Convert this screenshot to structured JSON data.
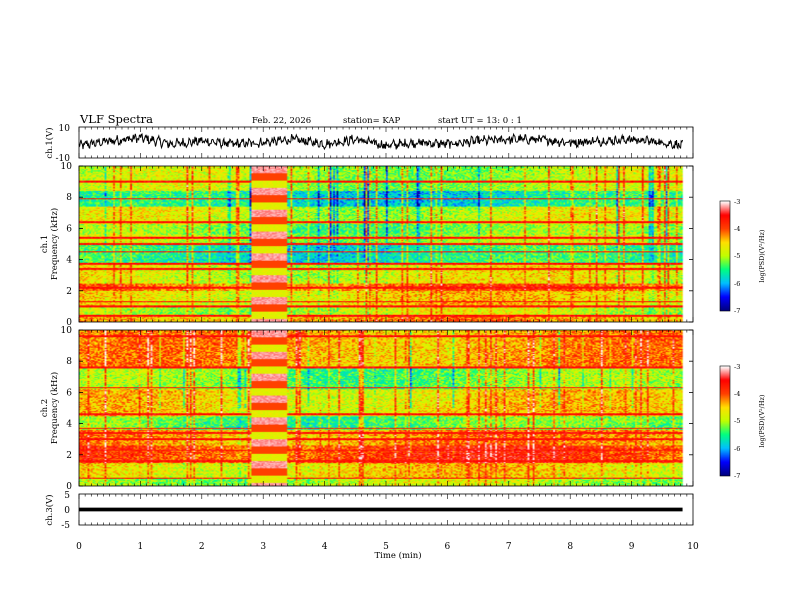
{
  "header": {
    "title": "VLF Spectra",
    "date": "Feb. 22, 2026",
    "station": "station= KAP",
    "start": "start  UT  =   13: 0   : 1"
  },
  "chart_data": [
    {
      "type": "line",
      "id": "ch1-waveform",
      "ylabel": "ch.1(V)",
      "ylim": [
        -10,
        10
      ],
      "ytick_labels": [
        "10",
        "-10"
      ],
      "xlim": [
        0,
        9.83
      ],
      "description_values_note": "noisy waveform, amplitude approx -6..6 V",
      "envelope_samples": [
        {
          "t": 0.0,
          "v": -2
        },
        {
          "t": 0.5,
          "v": 1
        },
        {
          "t": 1.0,
          "v": 3
        },
        {
          "t": 1.5,
          "v": -1
        },
        {
          "t": 2.0,
          "v": 1
        },
        {
          "t": 2.5,
          "v": -1
        },
        {
          "t": 3.0,
          "v": 0
        },
        {
          "t": 3.5,
          "v": 2
        },
        {
          "t": 4.0,
          "v": -1
        },
        {
          "t": 4.5,
          "v": 2
        },
        {
          "t": 5.0,
          "v": -2
        },
        {
          "t": 5.5,
          "v": 0
        },
        {
          "t": 6.0,
          "v": -1
        },
        {
          "t": 6.5,
          "v": 1
        },
        {
          "t": 7.0,
          "v": 2
        },
        {
          "t": 7.5,
          "v": 2
        },
        {
          "t": 8.0,
          "v": 0
        },
        {
          "t": 8.5,
          "v": 1
        },
        {
          "t": 9.0,
          "v": 2
        },
        {
          "t": 9.5,
          "v": 0
        },
        {
          "t": 9.83,
          "v": -2
        }
      ]
    },
    {
      "type": "heatmap",
      "id": "ch1-spectrogram",
      "ylabel_line1": "ch.1",
      "ylabel_line2": "Frequency (kHz)",
      "ylim": [
        0,
        10
      ],
      "ytick_labels": [
        "0",
        "2",
        "4",
        "6",
        "8",
        "10"
      ],
      "xlim": [
        0,
        9.83
      ],
      "colorbar": {
        "label": "log(PSD)(V²/Hz)",
        "range": [
          -7,
          -3
        ],
        "tick_labels": [
          "-3",
          "-4",
          "-5",
          "-6",
          "-7"
        ]
      },
      "bands_khz_level": [
        {
          "f": [
            0,
            0.4
          ],
          "level": -4.3
        },
        {
          "f": [
            0.4,
            1.0
          ],
          "level": -4.9
        },
        {
          "f": [
            1.0,
            2.0
          ],
          "level": -4.6
        },
        {
          "f": [
            2.0,
            2.5
          ],
          "level": -4.1
        },
        {
          "f": [
            2.5,
            3.8
          ],
          "level": -4.8
        },
        {
          "f": [
            3.8,
            5.0
          ],
          "level": -5.6
        },
        {
          "f": [
            5.0,
            5.6
          ],
          "level": -5.0
        },
        {
          "f": [
            5.6,
            6.3
          ],
          "level": -5.2
        },
        {
          "f": [
            6.3,
            7.4
          ],
          "level": -4.9
        },
        {
          "f": [
            7.4,
            8.4
          ],
          "level": -5.7
        },
        {
          "f": [
            8.4,
            10
          ],
          "level": -5.0
        }
      ],
      "transmitter_lines_khz": [
        0.4,
        1.0,
        1.3,
        2.2,
        3.4,
        3.75,
        4.5,
        5.0,
        5.4,
        6.4,
        7.9,
        9.0
      ],
      "burst_interval_min": [
        2.8,
        3.35
      ]
    },
    {
      "type": "heatmap",
      "id": "ch2-spectrogram",
      "ylabel_line1": "ch.2",
      "ylabel_line2": "Frequency (kHz)",
      "ylim": [
        0,
        10
      ],
      "ytick_labels": [
        "0",
        "2",
        "4",
        "6",
        "8",
        "10"
      ],
      "xlim": [
        0,
        9.83
      ],
      "colorbar": {
        "label": "log(PSD)(V²/Hz)",
        "range": [
          -7,
          -3
        ],
        "tick_labels": [
          "-3",
          "-4",
          "-5",
          "-6",
          "-7"
        ]
      },
      "bands_khz_level": [
        {
          "f": [
            0,
            0.5
          ],
          "level": -5.0
        },
        {
          "f": [
            0.5,
            1.5
          ],
          "level": -4.6
        },
        {
          "f": [
            1.5,
            2.6
          ],
          "level": -3.9
        },
        {
          "f": [
            2.6,
            3.6
          ],
          "level": -4.3
        },
        {
          "f": [
            3.6,
            4.5
          ],
          "level": -5.3
        },
        {
          "f": [
            4.5,
            6.2
          ],
          "level": -4.6
        },
        {
          "f": [
            6.2,
            7.6
          ],
          "level": -5.2
        },
        {
          "f": [
            7.6,
            10
          ],
          "level": -4.3
        }
      ],
      "transmitter_lines_khz": [
        0.5,
        1.6,
        2.3,
        3.0,
        3.4,
        3.7,
        4.6,
        6.3,
        7.6,
        9.6
      ],
      "burst_interval_min": [
        2.8,
        3.35
      ]
    },
    {
      "type": "line",
      "id": "ch3-waveform",
      "ylabel": "ch.3(V)",
      "ylim": [
        -5,
        5
      ],
      "ytick_labels": [
        "5",
        "0",
        "-5"
      ],
      "xlim": [
        0,
        9.83
      ],
      "band_v": [
        -0.6,
        0.6
      ]
    }
  ],
  "x_axis": {
    "label": "Time  (min)",
    "tick_labels": [
      "0",
      "1",
      "2",
      "3",
      "4",
      "5",
      "6",
      "7",
      "8",
      "9",
      "10"
    ],
    "range": [
      0,
      10
    ]
  },
  "colors": {
    "colormap": [
      "#00007f",
      "#0000ff",
      "#00bfff",
      "#00ff80",
      "#c0ff00",
      "#ffe000",
      "#ff4000",
      "#ff0000",
      "#ffffff"
    ]
  }
}
